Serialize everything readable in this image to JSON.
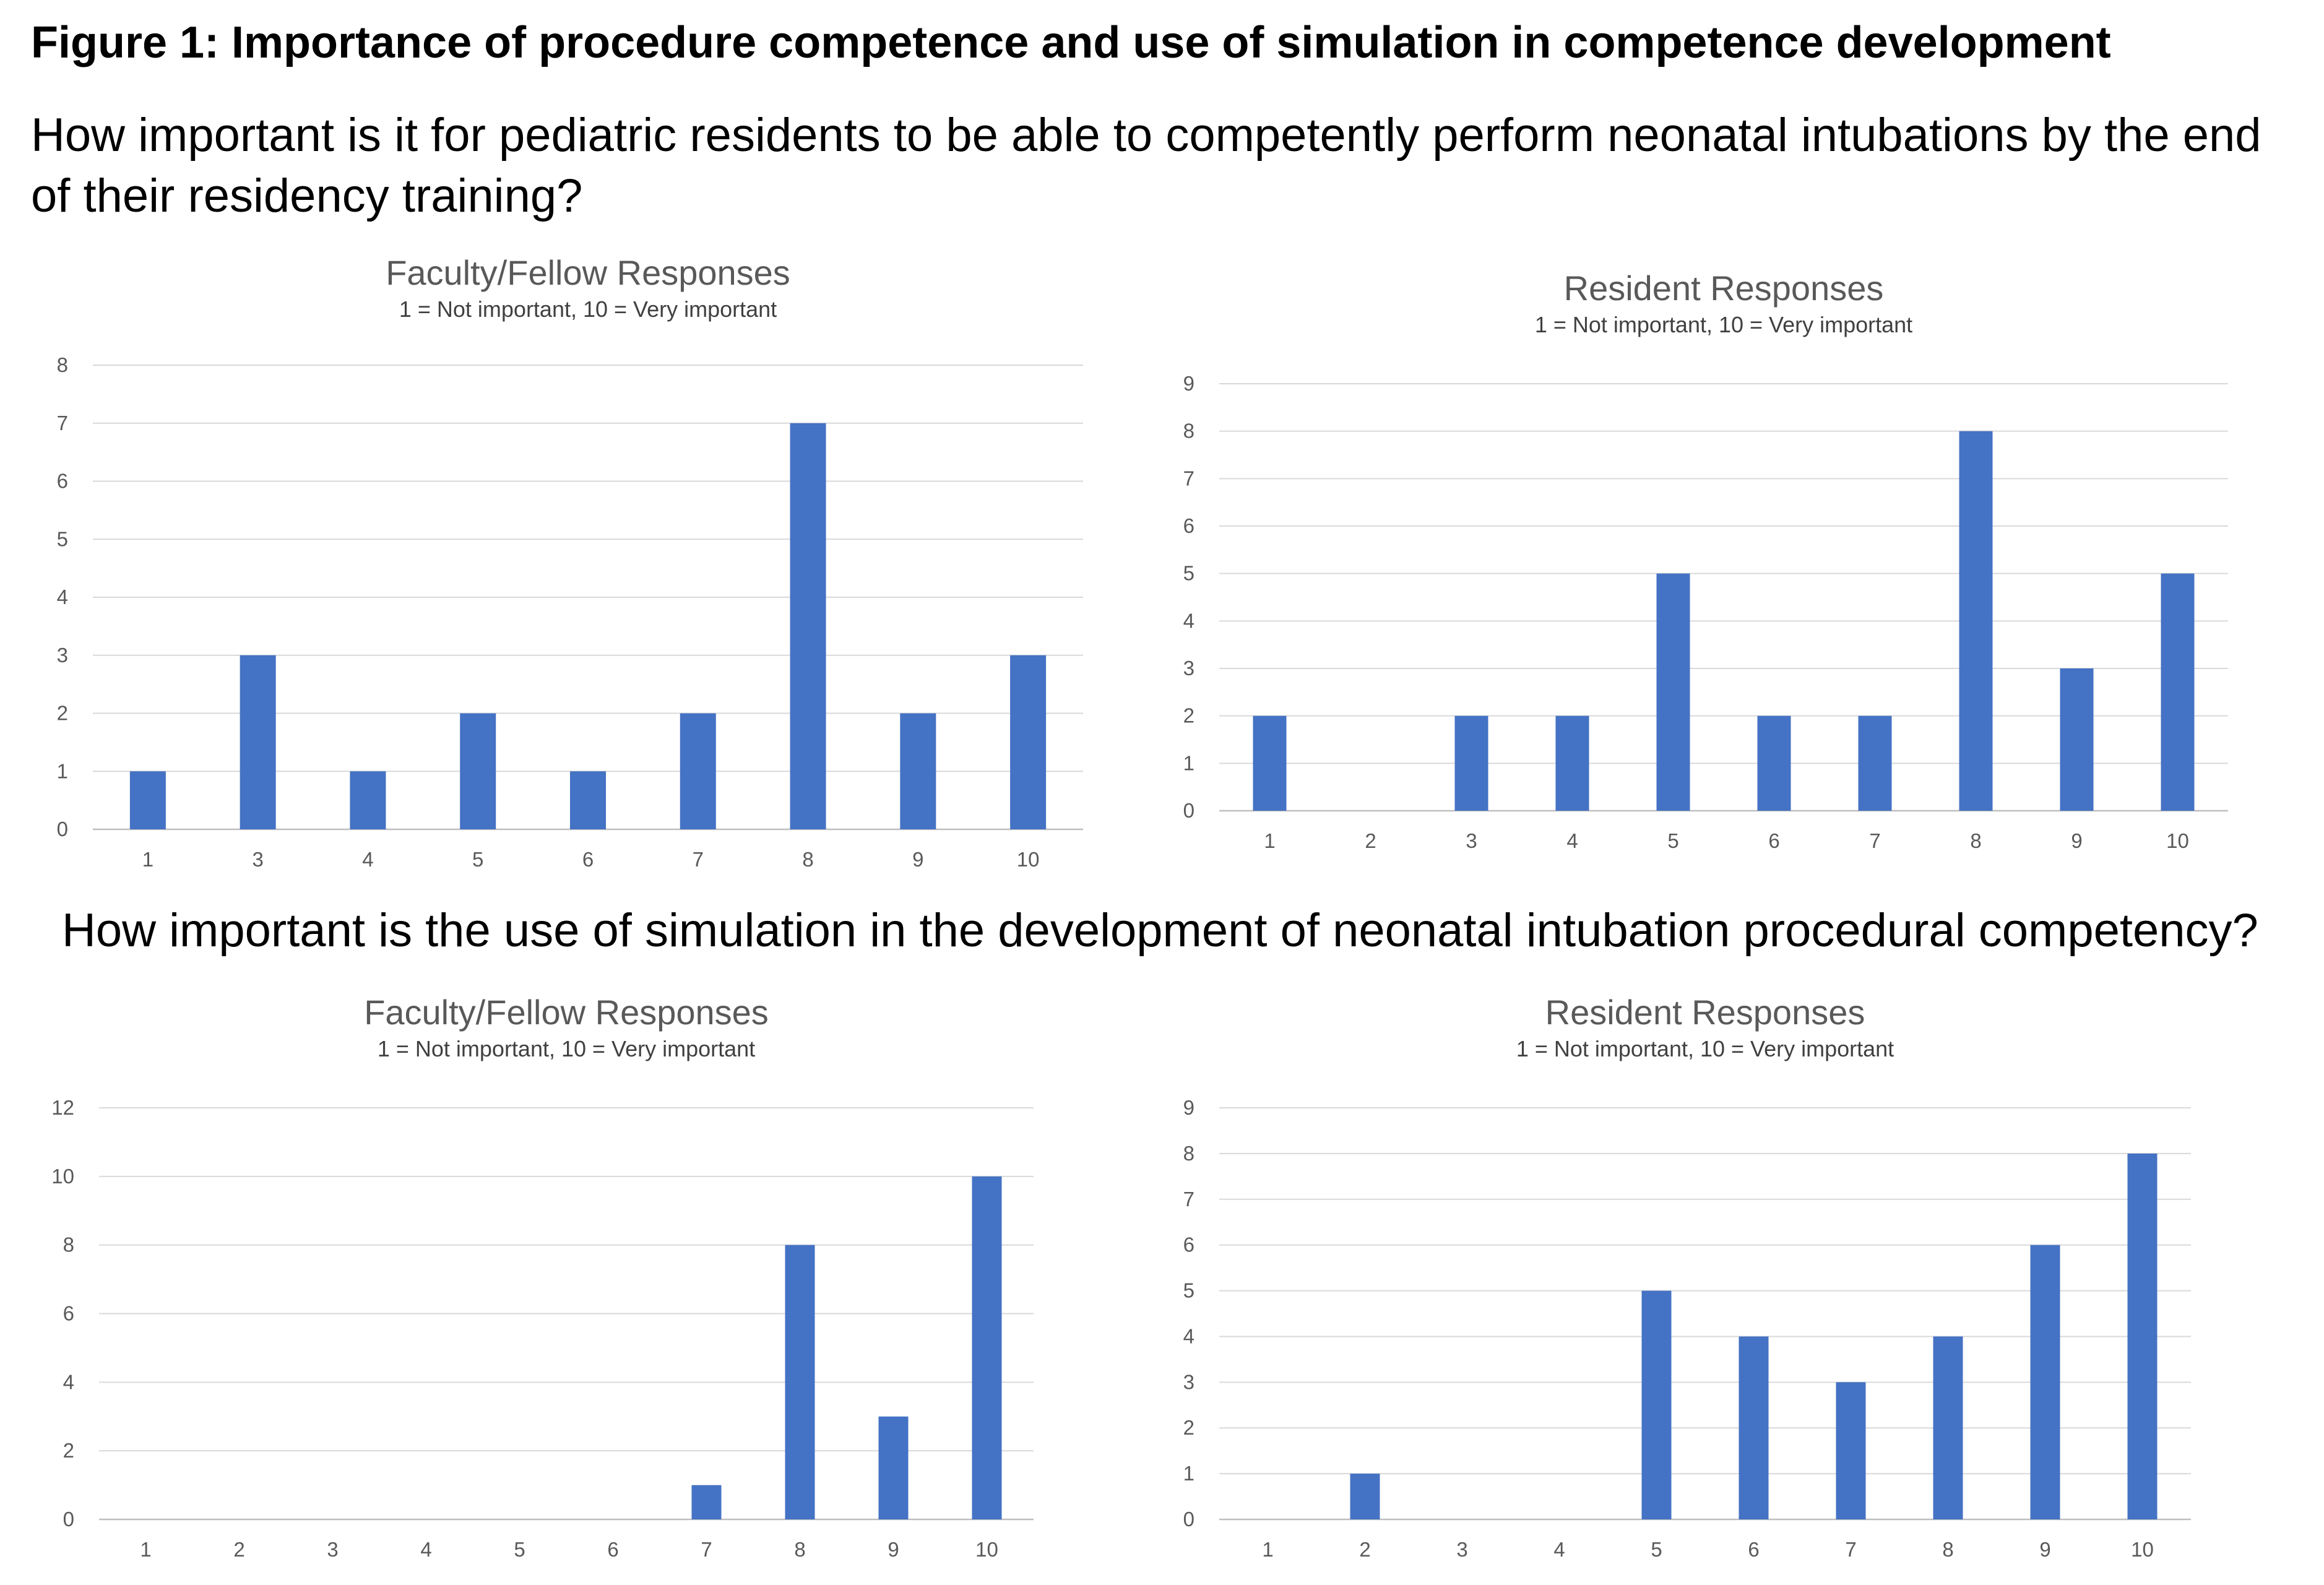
{
  "figure_title": "Figure 1: Importance of procedure competence and use of simulation in competence development",
  "questions": {
    "q1": "How important is it for pediatric residents to be able to competently perform neonatal intubations by the end of their residency training?",
    "q2": "How important is the use of simulation in the development of neonatal intubation procedural competency?"
  },
  "chart_data": [
    {
      "type": "bar",
      "title": "Faculty/Fellow Responses",
      "subtitle": "1 = Not important, 10 = Very important",
      "categories": [
        "1",
        "3",
        "4",
        "5",
        "6",
        "7",
        "8",
        "9",
        "10"
      ],
      "values": [
        1,
        3,
        1,
        2,
        1,
        2,
        7,
        2,
        3
      ],
      "ylim": [
        0,
        8
      ],
      "yticks": [
        0,
        1,
        2,
        3,
        4,
        5,
        6,
        7,
        8
      ],
      "grid": true,
      "color": "#4472C4"
    },
    {
      "type": "bar",
      "title": "Resident Responses",
      "subtitle": "1 = Not important, 10 = Very important",
      "categories": [
        "1",
        "2",
        "3",
        "4",
        "5",
        "6",
        "7",
        "8",
        "9",
        "10"
      ],
      "values": [
        2,
        0,
        2,
        2,
        5,
        2,
        2,
        8,
        3,
        5
      ],
      "ylim": [
        0,
        9
      ],
      "yticks": [
        0,
        1,
        2,
        3,
        4,
        5,
        6,
        7,
        8,
        9
      ],
      "grid": true,
      "color": "#4472C4"
    },
    {
      "type": "bar",
      "title": "Faculty/Fellow Responses",
      "subtitle": "1 = Not important, 10 = Very important",
      "categories": [
        "1",
        "2",
        "3",
        "4",
        "5",
        "6",
        "7",
        "8",
        "9",
        "10"
      ],
      "values": [
        0,
        0,
        0,
        0,
        0,
        0,
        1,
        8,
        3,
        10
      ],
      "ylim": [
        0,
        12
      ],
      "yticks": [
        0,
        2,
        4,
        6,
        8,
        10,
        12
      ],
      "grid": true,
      "color": "#4472C4"
    },
    {
      "type": "bar",
      "title": "Resident Responses",
      "subtitle": "1 = Not important, 10 = Very important",
      "categories": [
        "1",
        "2",
        "3",
        "4",
        "5",
        "6",
        "7",
        "8",
        "9",
        "10"
      ],
      "values": [
        0,
        1,
        0,
        0,
        5,
        4,
        3,
        4,
        6,
        8
      ],
      "ylim": [
        0,
        9
      ],
      "yticks": [
        0,
        1,
        2,
        3,
        4,
        5,
        6,
        7,
        8,
        9
      ],
      "grid": true,
      "color": "#4472C4"
    }
  ]
}
